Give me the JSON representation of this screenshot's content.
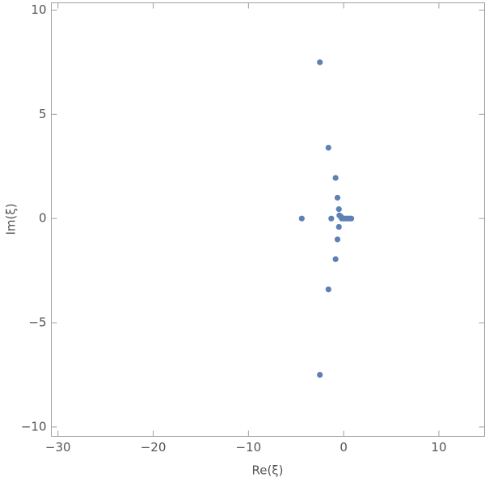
{
  "chart_data": {
    "type": "scatter",
    "x_label": "Re(ξ)",
    "y_label": "Im(ξ)",
    "xlim": [
      -30.7,
      14.8
    ],
    "ylim": [
      -10.45,
      10.35
    ],
    "xticks": [
      {
        "value": -30,
        "label": "−30"
      },
      {
        "value": -20,
        "label": "−20"
      },
      {
        "value": -10,
        "label": "−10"
      },
      0,
      10
    ],
    "yticks": [
      {
        "value": -10,
        "label": "−10"
      },
      {
        "value": -5,
        "label": "−5"
      },
      0,
      5,
      10
    ],
    "color": "#5e81b5",
    "x": [
      -2.5,
      -2.5,
      -1.6,
      -1.6,
      -0.85,
      -0.85,
      -0.65,
      -0.65,
      -4.4,
      -1.3,
      -0.5,
      -0.5,
      -0.45,
      -0.3,
      -0.2,
      0,
      0.2,
      0.4,
      0.6,
      0.8
    ],
    "y": [
      7.5,
      -7.5,
      3.4,
      -3.4,
      1.95,
      -1.95,
      1.0,
      -1.0,
      0,
      0,
      0.45,
      -0.4,
      0.15,
      0.1,
      0,
      0,
      0,
      0,
      0,
      0
    ]
  }
}
